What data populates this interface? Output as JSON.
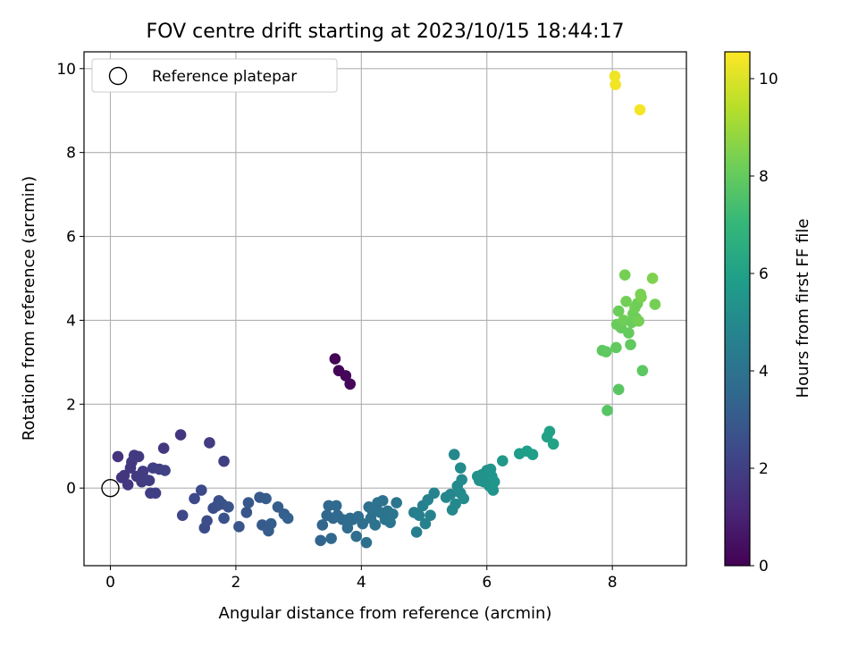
{
  "chart_data": {
    "type": "scatter",
    "title": "FOV centre drift starting at 2023/10/15 18:44:17",
    "xlabel": "Angular distance from reference (arcmin)",
    "ylabel": "Rotation from reference (arcmin)",
    "xlim": [
      -0.42,
      9.18
    ],
    "ylim": [
      -1.85,
      10.4
    ],
    "xticks": [
      0,
      2,
      4,
      6,
      8
    ],
    "yticks": [
      0,
      2,
      4,
      6,
      8,
      10
    ],
    "xtick_labels": [
      "0",
      "2",
      "4",
      "6",
      "8"
    ],
    "ytick_labels": [
      "0",
      "2",
      "4",
      "6",
      "8",
      "10"
    ],
    "grid": true,
    "legend": {
      "placement": "upper-left",
      "entries": [
        {
          "label": "Reference platepar",
          "marker": "open-circle"
        }
      ]
    },
    "reference_point": {
      "x": 0,
      "y": 0
    },
    "colorbar": {
      "label": "Hours from first FF file",
      "range": [
        0,
        10.55
      ],
      "ticks": [
        0,
        2,
        4,
        6,
        8,
        10
      ],
      "tick_labels": [
        "0",
        "2",
        "4",
        "6",
        "8",
        "10"
      ],
      "colormap": "viridis"
    },
    "colors": {
      "viridis": [
        "#440154",
        "#482878",
        "#3e4989",
        "#31688e",
        "#26828e",
        "#1f9e89",
        "#35b779",
        "#6ece58",
        "#b5de2b",
        "#fde725"
      ]
    },
    "points": [
      [
        3.58,
        3.08,
        0.05
      ],
      [
        3.64,
        2.8,
        0.1
      ],
      [
        3.75,
        2.68,
        0.15
      ],
      [
        3.82,
        2.48,
        0.2
      ],
      [
        0.12,
        0.75,
        1.55
      ],
      [
        0.18,
        0.25,
        1.6
      ],
      [
        0.22,
        0.3,
        1.65
      ],
      [
        0.28,
        0.08,
        1.7
      ],
      [
        0.32,
        0.48,
        1.72
      ],
      [
        0.34,
        0.62,
        1.75
      ],
      [
        0.38,
        0.78,
        1.8
      ],
      [
        0.42,
        0.28,
        1.78
      ],
      [
        0.45,
        0.75,
        1.82
      ],
      [
        0.5,
        0.15,
        1.85
      ],
      [
        0.52,
        0.4,
        1.88
      ],
      [
        0.56,
        0.2,
        1.9
      ],
      [
        0.62,
        0.18,
        1.92
      ],
      [
        0.64,
        -0.12,
        1.95
      ],
      [
        0.68,
        0.48,
        1.98
      ],
      [
        0.72,
        -0.12,
        2.0
      ],
      [
        0.78,
        0.45,
        2.02
      ],
      [
        0.85,
        0.95,
        1.7
      ],
      [
        0.87,
        0.42,
        2.05
      ],
      [
        1.12,
        1.27,
        1.65
      ],
      [
        1.15,
        -0.65,
        2.3
      ],
      [
        1.34,
        -0.25,
        2.35
      ],
      [
        1.45,
        -0.05,
        2.4
      ],
      [
        1.5,
        -0.95,
        2.45
      ],
      [
        1.54,
        -0.78,
        2.5
      ],
      [
        1.58,
        1.08,
        1.9
      ],
      [
        1.64,
        -0.48,
        2.55
      ],
      [
        1.7,
        -0.42,
        2.6
      ],
      [
        1.73,
        -0.3,
        2.62
      ],
      [
        1.78,
        -0.38,
        2.65
      ],
      [
        1.81,
        -0.72,
        2.7
      ],
      [
        1.81,
        0.64,
        2.0
      ],
      [
        1.88,
        -0.45,
        2.72
      ],
      [
        2.05,
        -0.92,
        2.8
      ],
      [
        2.17,
        -0.58,
        2.85
      ],
      [
        2.2,
        -0.35,
        2.9
      ],
      [
        2.38,
        -0.22,
        2.95
      ],
      [
        2.42,
        -0.88,
        3.0
      ],
      [
        2.48,
        -0.25,
        3.05
      ],
      [
        2.52,
        -1.02,
        3.1
      ],
      [
        2.56,
        -0.85,
        3.12
      ],
      [
        2.67,
        -0.45,
        3.15
      ],
      [
        2.77,
        -0.62,
        3.2
      ],
      [
        2.83,
        -0.72,
        3.25
      ],
      [
        3.35,
        -1.25,
        3.4
      ],
      [
        3.38,
        -0.88,
        3.45
      ],
      [
        3.45,
        -0.65,
        3.5
      ],
      [
        3.48,
        -0.42,
        3.52
      ],
      [
        3.52,
        -1.2,
        3.55
      ],
      [
        3.55,
        -0.72,
        3.58
      ],
      [
        3.6,
        -0.42,
        3.6
      ],
      [
        3.62,
        -0.65,
        3.62
      ],
      [
        3.7,
        -0.75,
        3.65
      ],
      [
        3.78,
        -0.95,
        3.7
      ],
      [
        3.82,
        -0.72,
        3.72
      ],
      [
        3.86,
        -0.75,
        3.75
      ],
      [
        3.92,
        -1.15,
        3.78
      ],
      [
        3.95,
        -0.68,
        3.8
      ],
      [
        4.02,
        -0.85,
        3.82
      ],
      [
        4.08,
        -1.3,
        3.85
      ],
      [
        4.12,
        -0.45,
        3.88
      ],
      [
        4.15,
        -0.72,
        3.9
      ],
      [
        4.18,
        -0.55,
        3.92
      ],
      [
        4.22,
        -0.88,
        3.95
      ],
      [
        4.26,
        -0.35,
        3.98
      ],
      [
        4.3,
        -0.58,
        4.0
      ],
      [
        4.34,
        -0.3,
        4.02
      ],
      [
        4.38,
        -0.75,
        4.05
      ],
      [
        4.42,
        -0.55,
        4.08
      ],
      [
        4.46,
        -0.82,
        4.1
      ],
      [
        4.5,
        -0.62,
        4.12
      ],
      [
        4.56,
        -0.35,
        4.15
      ],
      [
        4.84,
        -0.58,
        4.5
      ],
      [
        4.88,
        -1.05,
        4.55
      ],
      [
        4.92,
        -0.65,
        4.6
      ],
      [
        4.98,
        -0.42,
        4.62
      ],
      [
        5.02,
        -0.85,
        4.65
      ],
      [
        5.06,
        -0.28,
        4.7
      ],
      [
        5.1,
        -0.65,
        4.72
      ],
      [
        5.16,
        -0.12,
        4.75
      ],
      [
        5.35,
        -0.22,
        4.85
      ],
      [
        5.42,
        -0.15,
        4.9
      ],
      [
        5.45,
        -0.52,
        4.92
      ],
      [
        5.48,
        0.8,
        4.95
      ],
      [
        5.5,
        -0.38,
        4.98
      ],
      [
        5.53,
        0.05,
        5.0
      ],
      [
        5.58,
        -0.12,
        5.02
      ],
      [
        5.58,
        0.48,
        5.05
      ],
      [
        5.6,
        0.2,
        5.08
      ],
      [
        5.63,
        -0.25,
        5.1
      ],
      [
        5.85,
        0.28,
        5.3
      ],
      [
        5.88,
        0.18,
        5.32
      ],
      [
        5.92,
        0.32,
        5.35
      ],
      [
        5.95,
        0.15,
        5.38
      ],
      [
        6.0,
        0.42,
        5.4
      ],
      [
        6.04,
        0.05,
        5.42
      ],
      [
        6.06,
        0.45,
        5.45
      ],
      [
        6.08,
        0.28,
        5.48
      ],
      [
        6.1,
        -0.05,
        5.5
      ],
      [
        6.12,
        0.15,
        5.52
      ],
      [
        6.25,
        0.65,
        5.6
      ],
      [
        6.52,
        0.82,
        5.8
      ],
      [
        6.64,
        0.88,
        5.85
      ],
      [
        6.73,
        0.8,
        5.9
      ],
      [
        6.96,
        1.22,
        6.0
      ],
      [
        7.0,
        1.35,
        6.02
      ],
      [
        7.06,
        1.05,
        6.05
      ],
      [
        7.84,
        3.28,
        7.85
      ],
      [
        7.9,
        3.25,
        7.9
      ],
      [
        7.92,
        1.85,
        7.75
      ],
      [
        8.06,
        3.35,
        7.95
      ],
      [
        8.07,
        3.9,
        8.1
      ],
      [
        8.1,
        4.22,
        8.15
      ],
      [
        8.1,
        2.35,
        7.8
      ],
      [
        8.14,
        3.82,
        8.05
      ],
      [
        8.18,
        4.0,
        8.2
      ],
      [
        8.2,
        5.08,
        8.3
      ],
      [
        8.22,
        4.45,
        8.25
      ],
      [
        8.26,
        3.7,
        8.0
      ],
      [
        8.29,
        3.42,
        7.95
      ],
      [
        8.31,
        3.95,
        8.1
      ],
      [
        8.33,
        4.15,
        8.2
      ],
      [
        8.36,
        4.3,
        8.25
      ],
      [
        8.38,
        4.05,
        8.15
      ],
      [
        8.4,
        4.4,
        8.2
      ],
      [
        8.42,
        3.98,
        8.3
      ],
      [
        8.45,
        4.62,
        8.35
      ],
      [
        8.46,
        4.55,
        8.4
      ],
      [
        8.48,
        2.8,
        7.85
      ],
      [
        8.64,
        5.0,
        8.45
      ],
      [
        8.68,
        4.38,
        8.3
      ],
      [
        8.04,
        9.82,
        10.3
      ],
      [
        8.05,
        9.62,
        10.35
      ],
      [
        8.44,
        9.02,
        10.4
      ]
    ]
  }
}
